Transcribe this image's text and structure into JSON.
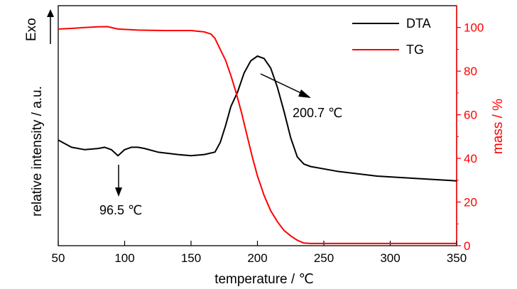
{
  "chart_data": {
    "type": "line",
    "x_axis": {
      "label": "temperature / ℃",
      "range": [
        50,
        350
      ],
      "ticks": [
        50,
        100,
        150,
        200,
        250,
        300,
        350
      ]
    },
    "y_left": {
      "label": "relative intensity / a.u.",
      "exo_label": "Exo",
      "range": [
        0,
        1
      ]
    },
    "y_right": {
      "label": "mass / %",
      "range": [
        0,
        110
      ],
      "ticks": [
        0,
        20,
        40,
        60,
        80,
        100
      ],
      "color": "#ff0000"
    },
    "series": [
      {
        "name": "DTA",
        "color": "#000000",
        "axis": "left",
        "x": [
          50,
          60,
          70,
          80,
          85,
          90,
          93,
          95,
          97,
          100,
          105,
          110,
          115,
          125,
          140,
          150,
          160,
          168,
          172,
          176,
          180,
          185,
          190,
          195,
          200,
          205,
          210,
          215,
          220,
          225,
          230,
          235,
          240,
          260,
          290,
          320,
          350
        ],
        "values": [
          0.44,
          0.41,
          0.4,
          0.405,
          0.41,
          0.4,
          0.385,
          0.375,
          0.385,
          0.4,
          0.41,
          0.41,
          0.405,
          0.39,
          0.38,
          0.375,
          0.38,
          0.39,
          0.43,
          0.5,
          0.58,
          0.64,
          0.72,
          0.77,
          0.79,
          0.78,
          0.74,
          0.66,
          0.56,
          0.45,
          0.37,
          0.34,
          0.33,
          0.31,
          0.29,
          0.28,
          0.27
        ]
      },
      {
        "name": "TG",
        "color": "#ff0000",
        "axis": "right",
        "x": [
          50,
          60,
          70,
          80,
          87,
          95,
          110,
          130,
          150,
          160,
          165,
          168,
          172,
          176,
          180,
          184,
          188,
          192,
          196,
          200,
          205,
          210,
          215,
          220,
          225,
          230,
          235,
          240,
          260,
          300,
          350
        ],
        "values": [
          99.3,
          99.6,
          100.0,
          100.3,
          100.4,
          99.3,
          98.8,
          98.6,
          98.6,
          98.0,
          97.0,
          95.0,
          90.0,
          85.0,
          78.0,
          70.0,
          61.0,
          51.0,
          41.0,
          32.0,
          23.0,
          16.0,
          11.0,
          7.0,
          4.5,
          2.5,
          1.2,
          1.0,
          1.0,
          1.0,
          1.0
        ]
      }
    ],
    "legend": {
      "position": "top-right",
      "entries": [
        "DTA",
        "TG"
      ]
    },
    "annotations": [
      {
        "text": "96.5 ℃",
        "x": 96.5,
        "series": "DTA",
        "arrow": "down"
      },
      {
        "text": "200.7 ℃",
        "x": 200.7,
        "series": "DTA",
        "arrow": "down-right"
      }
    ],
    "grid": false
  }
}
